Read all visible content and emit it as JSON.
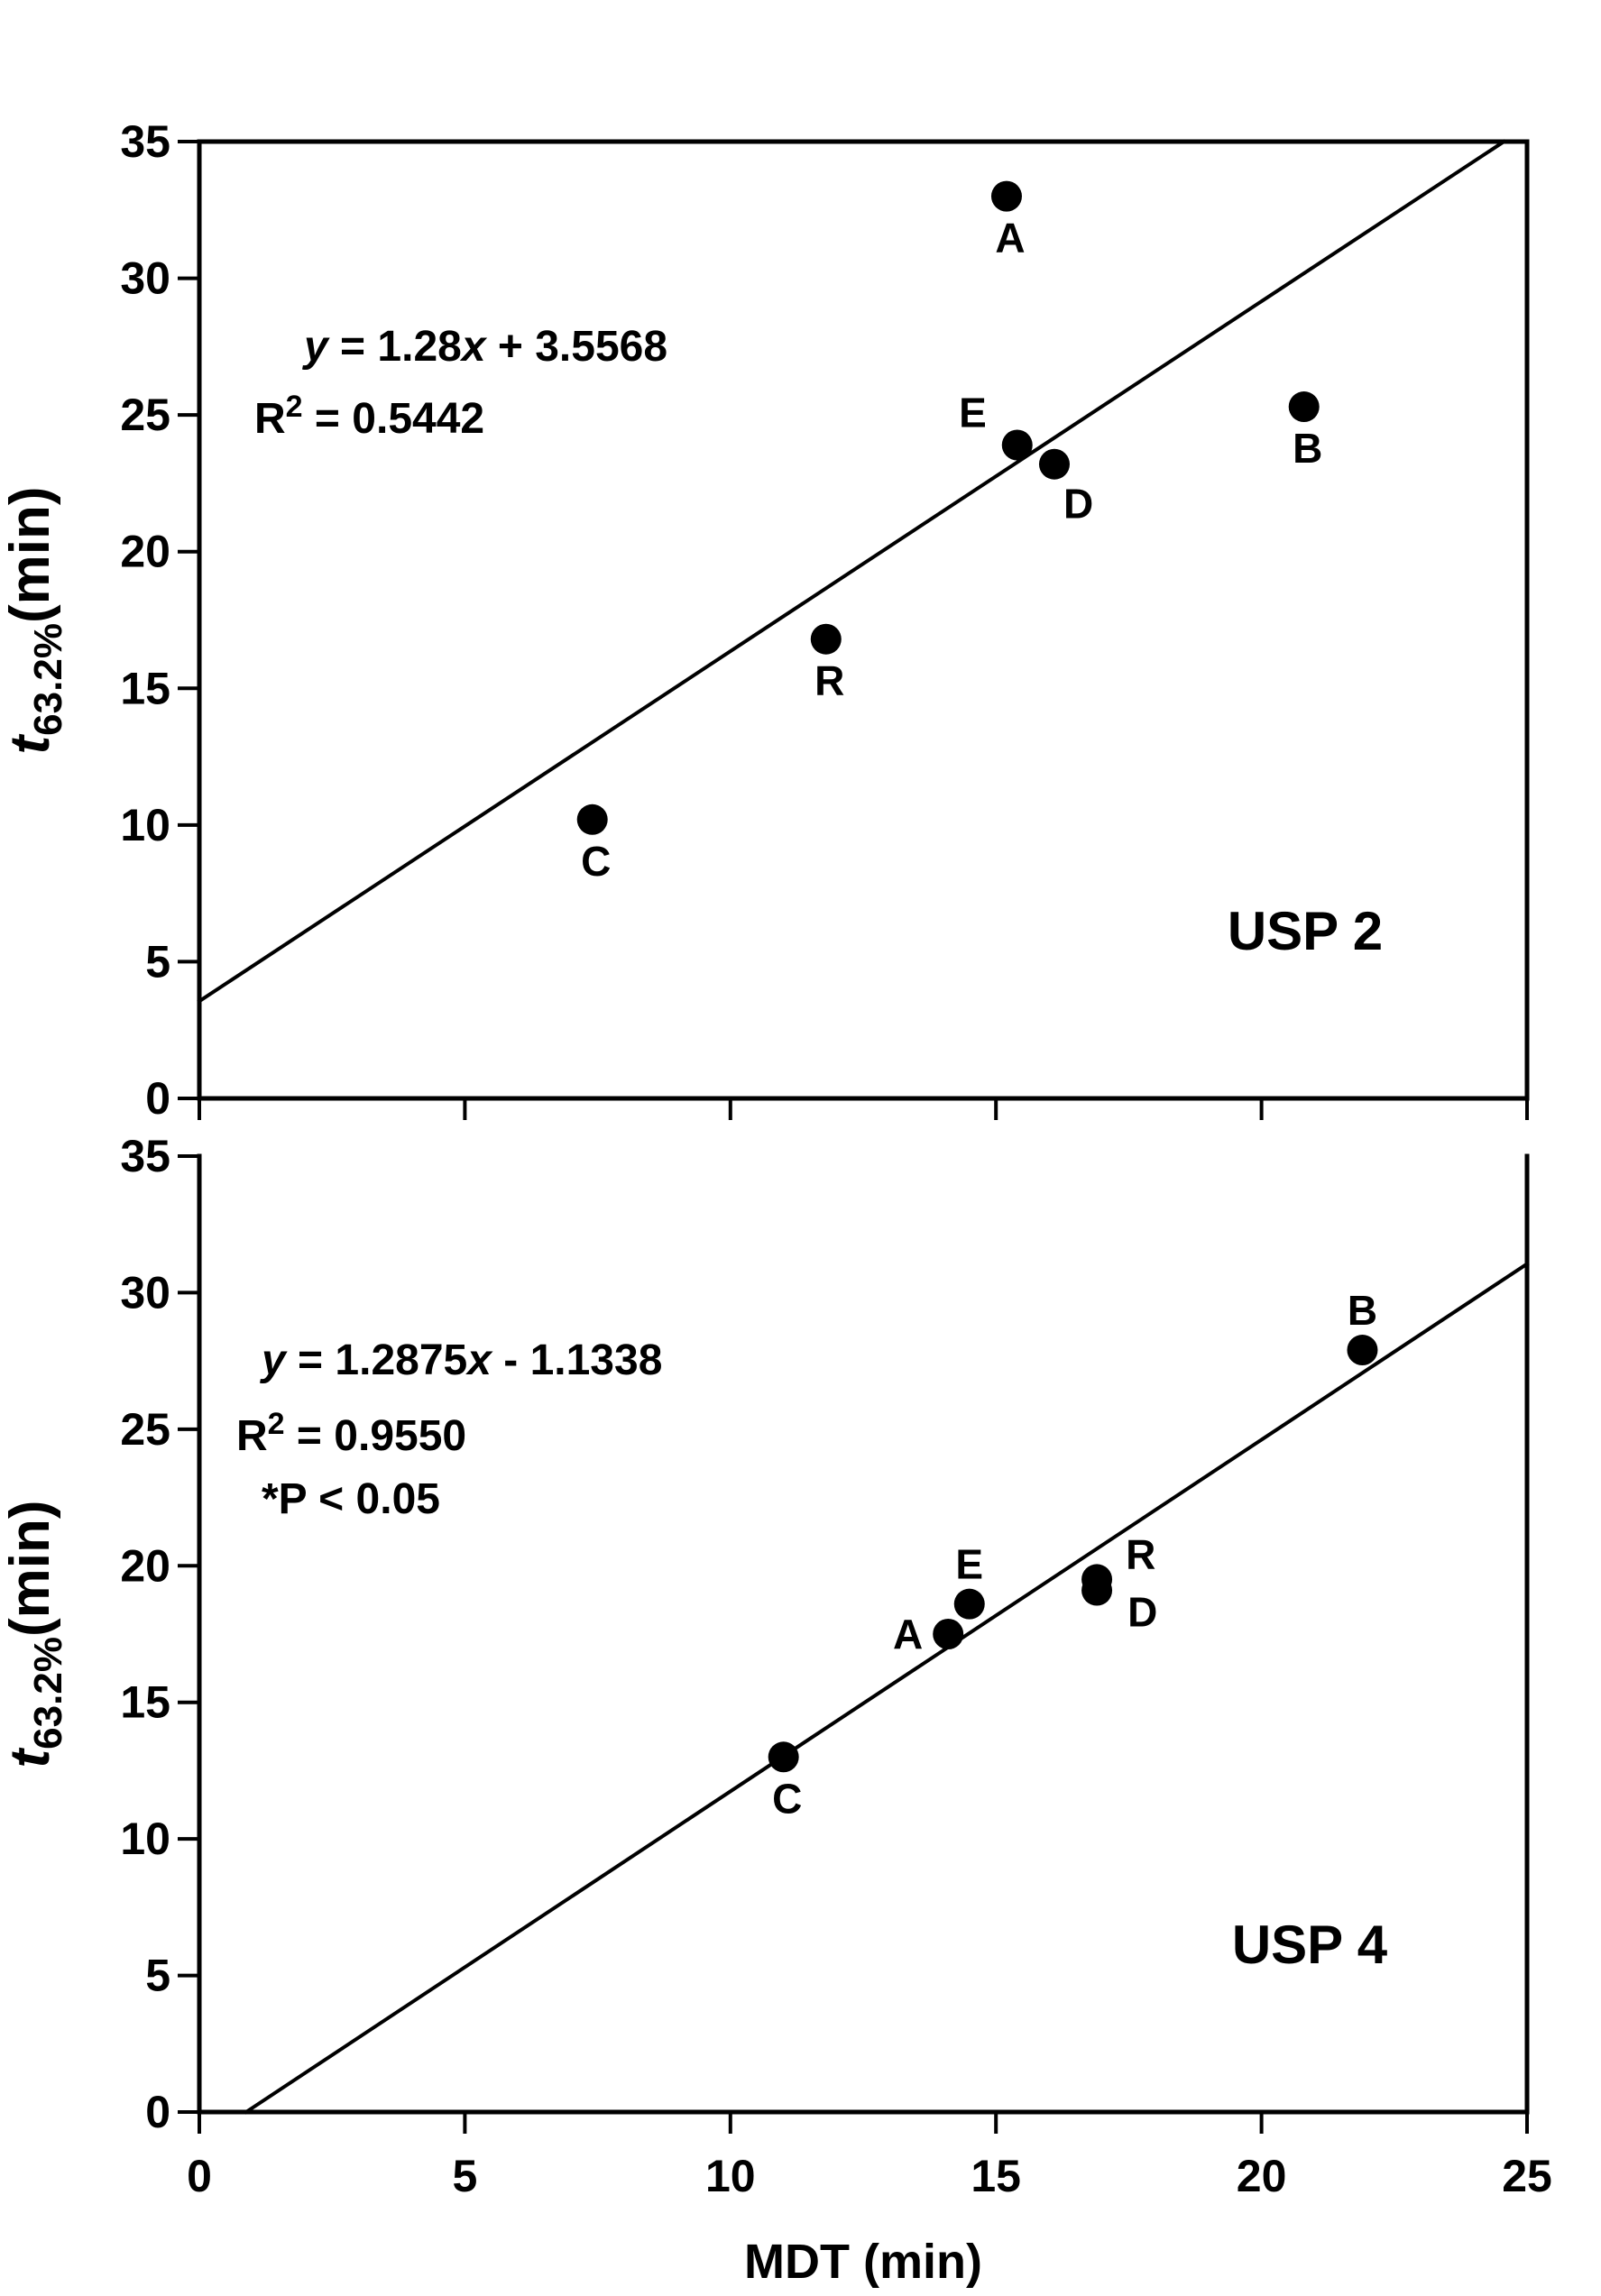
{
  "figure": {
    "background": "#ffffff",
    "ink": "#000000",
    "x_axis": {
      "label": "MDT (min)",
      "min": 0,
      "max": 25,
      "ticks": [
        0,
        5,
        10,
        15,
        20,
        25
      ]
    },
    "y_axis": {
      "label_lead": "t",
      "label_sub": "63.2%",
      "label_rest": "(min)",
      "min": 0,
      "max": 35,
      "ticks": [
        0,
        5,
        10,
        15,
        20,
        25,
        30,
        35
      ]
    }
  },
  "chart_data": [
    {
      "type": "scatter",
      "panel": "USP 2",
      "equation": [
        {
          "text": "y",
          "italic": true
        },
        {
          "text": " = 1.28",
          "italic": false
        },
        {
          "text": "x",
          "italic": true
        },
        {
          "text": " + 3.5568",
          "italic": false
        }
      ],
      "r2": {
        "base": "R",
        "sup": "2",
        "rest": " = 0.5442"
      },
      "p_note": null,
      "fit": {
        "slope": 1.28,
        "intercept": 3.5568
      },
      "grid": false,
      "points": [
        {
          "label": "A",
          "x": 15.2,
          "y": 33.0,
          "label_pos": "below"
        },
        {
          "label": "B",
          "x": 20.8,
          "y": 25.3,
          "label_pos": "below"
        },
        {
          "label": "C",
          "x": 7.4,
          "y": 10.2,
          "label_pos": "below"
        },
        {
          "label": "D",
          "x": 16.1,
          "y": 23.2,
          "label_pos": "below-right"
        },
        {
          "label": "E",
          "x": 15.4,
          "y": 23.9,
          "label_pos": "upper-left"
        },
        {
          "label": "R",
          "x": 11.8,
          "y": 16.8,
          "label_pos": "below"
        }
      ]
    },
    {
      "type": "scatter",
      "panel": "USP 4",
      "equation": [
        {
          "text": "y",
          "italic": true
        },
        {
          "text": " = 1.2875",
          "italic": false
        },
        {
          "text": "x",
          "italic": true
        },
        {
          "text": " - 1.1338",
          "italic": false
        }
      ],
      "r2": {
        "base": "R",
        "sup": "2",
        "rest": " = 0.9550"
      },
      "p_note": "*P < 0.05",
      "fit": {
        "slope": 1.2875,
        "intercept": -1.1338
      },
      "grid": false,
      "points": [
        {
          "label": "A",
          "x": 14.1,
          "y": 17.5,
          "label_pos": "left"
        },
        {
          "label": "B",
          "x": 21.9,
          "y": 27.9,
          "label_pos": "above"
        },
        {
          "label": "C",
          "x": 11.0,
          "y": 13.0,
          "label_pos": "below"
        },
        {
          "label": "D",
          "x": 16.9,
          "y": 19.1,
          "label_pos": "lower-right"
        },
        {
          "label": "E",
          "x": 14.5,
          "y": 18.6,
          "label_pos": "above"
        },
        {
          "label": "R",
          "x": 16.9,
          "y": 19.5,
          "label_pos": "upper-right"
        }
      ]
    }
  ]
}
